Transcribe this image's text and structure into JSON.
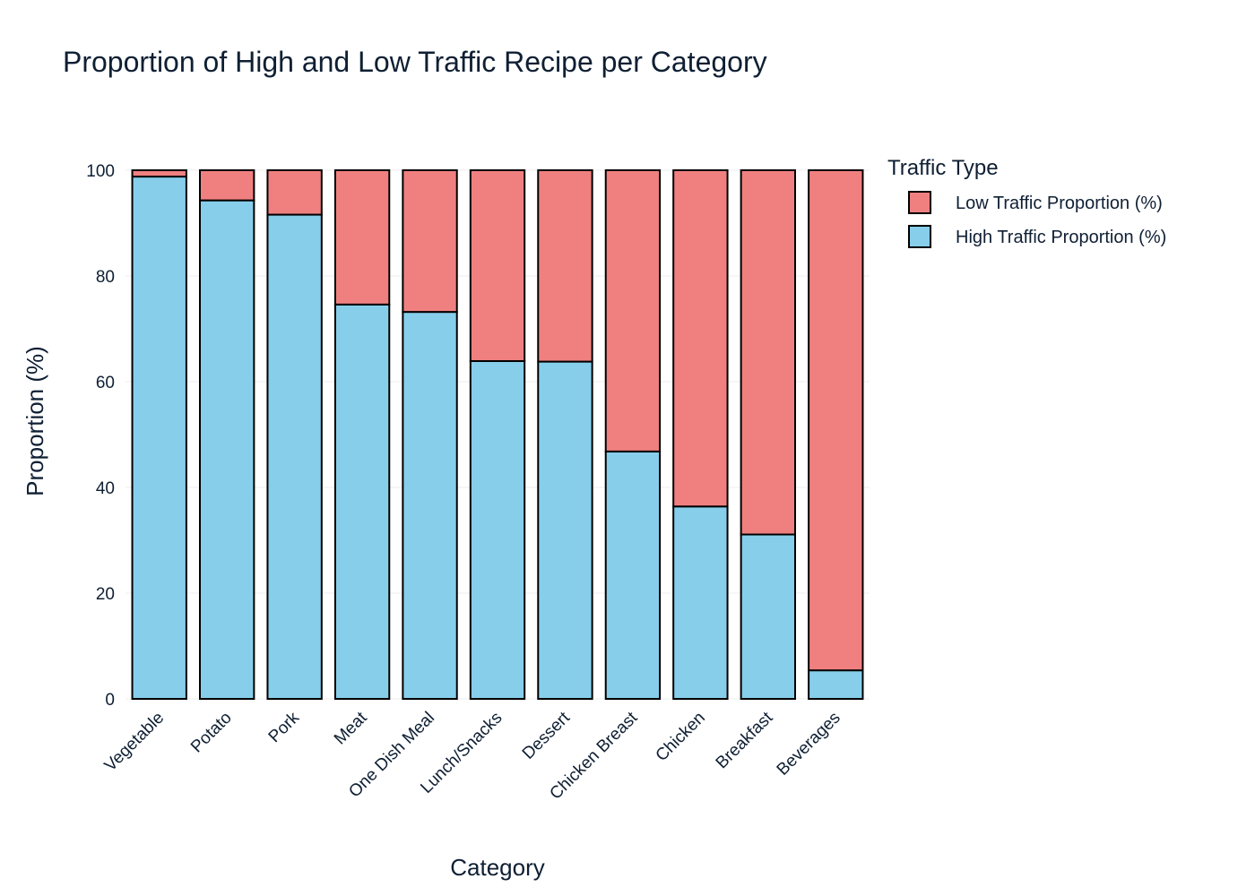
{
  "chart_data": {
    "type": "bar",
    "barmode": "stack",
    "title": "Proportion of High and Low Traffic Recipe per Category",
    "xlabel": "Category",
    "ylabel": "Proportion (%)",
    "ylim": [
      0,
      100
    ],
    "yticks": [
      "0",
      "20",
      "40",
      "60",
      "80",
      "100"
    ],
    "grid": true,
    "legend_position": "right",
    "legend_title": "Traffic Type",
    "categories": [
      "Vegetable",
      "Potato",
      "Pork",
      "Meat",
      "One Dish Meal",
      "Lunch/Snacks",
      "Dessert",
      "Chicken Breast",
      "Chicken",
      "Breakfast",
      "Beverages"
    ],
    "series": [
      {
        "name": "High Traffic Proportion (%)",
        "color": "#87ceeb",
        "values": [
          98.8,
          94.3,
          91.6,
          74.6,
          73.2,
          63.9,
          63.8,
          46.8,
          36.4,
          31.1,
          5.4
        ]
      },
      {
        "name": "Low Traffic Proportion (%)",
        "color": "#f08080",
        "values": [
          1.2,
          5.7,
          8.4,
          25.4,
          26.8,
          36.1,
          36.2,
          53.2,
          63.6,
          68.9,
          94.6
        ]
      }
    ],
    "legend_order": [
      1,
      0
    ],
    "bar_outline_color": "#000000"
  }
}
